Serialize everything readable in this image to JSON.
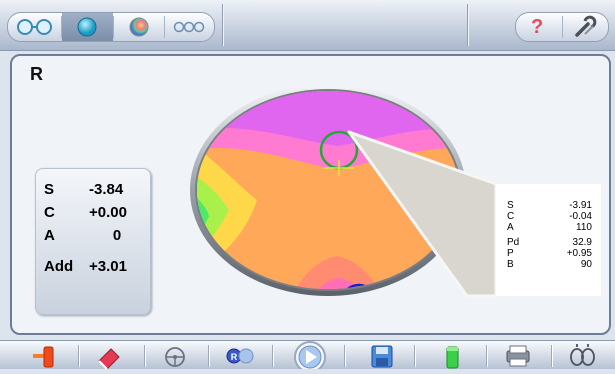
{
  "lens_label": "R",
  "summary": {
    "rows": [
      {
        "key": "S",
        "value": "-3.84"
      },
      {
        "key": "C",
        "value": "+0.00"
      },
      {
        "key": "A",
        "value": "0"
      },
      {
        "key": "Add",
        "value": "+3.01"
      }
    ]
  },
  "callout": {
    "rows": [
      {
        "key": "S",
        "value": "-3.91"
      },
      {
        "key": "C",
        "value": "-0.04"
      },
      {
        "key": "A",
        "value": "110"
      },
      {
        "key": "Pd",
        "value": "32.9"
      },
      {
        "key": "P",
        "value": "+0.95"
      },
      {
        "key": "B",
        "value": "90"
      }
    ]
  },
  "topbar": {
    "help_symbol": "?",
    "view_modes": [
      "binocular-view-icon",
      "single-lens-view-icon",
      "color-map-view-icon",
      "three-lens-view-icon"
    ],
    "selected_view_index": 1
  },
  "bottom_toolbar": {
    "icons": [
      "exit-icon",
      "eraser-icon",
      "steering-wheel-icon",
      "right-left-lens-icon",
      "play-icon",
      "save-icon",
      "green-cylinder-icon",
      "print-icon",
      "lens-frame-icon"
    ]
  },
  "colors": {
    "accent": "#55aadd",
    "panel_border": "#6c7d97",
    "distance_circle": "#22aa33",
    "near_circle": "#1122cc",
    "callout_fill": "#d8d6cf"
  }
}
